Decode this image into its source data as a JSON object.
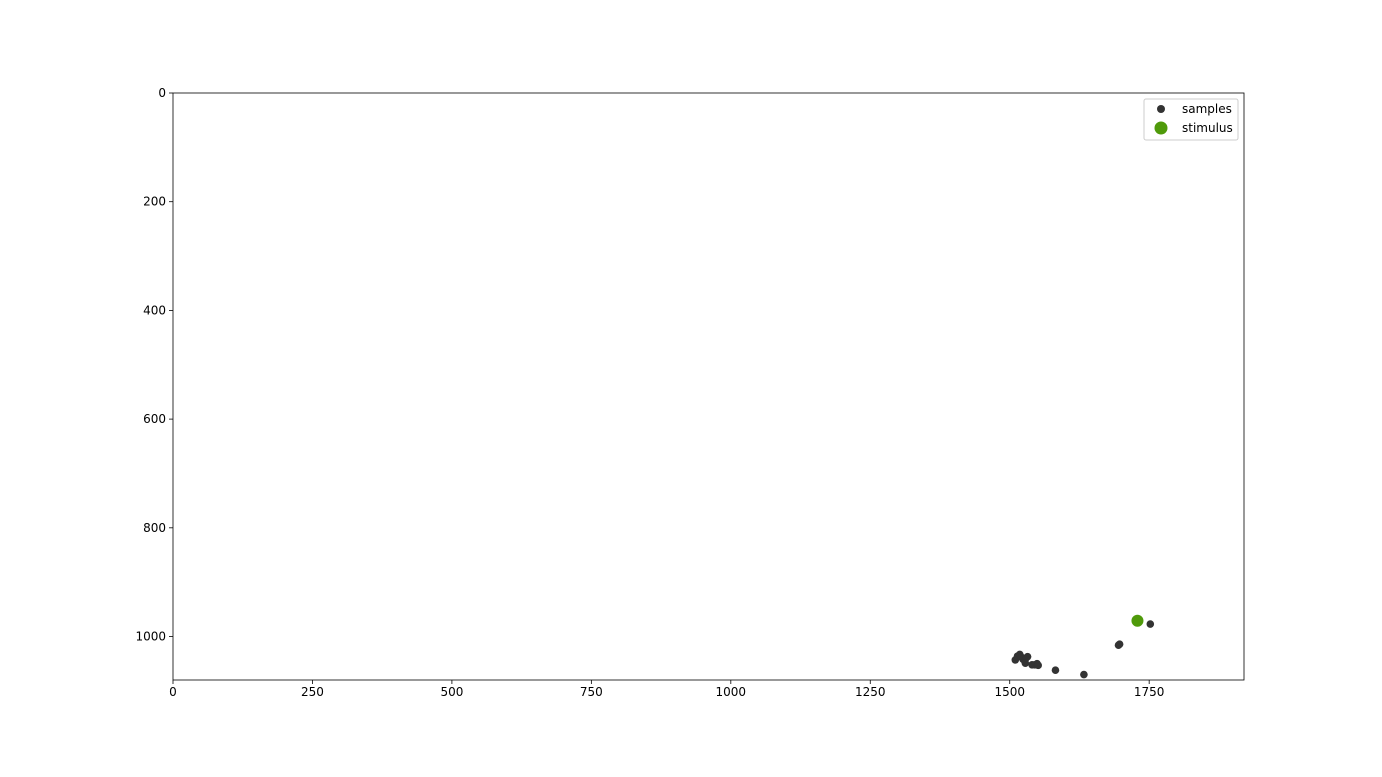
{
  "chart_data": {
    "type": "scatter",
    "title": "",
    "xlabel": "",
    "ylabel": "",
    "xlim": [
      0,
      1920
    ],
    "ylim": [
      1080,
      0
    ],
    "y_inverted": true,
    "grid": false,
    "legend_placement": "top-right",
    "x_ticks": [
      0,
      250,
      500,
      750,
      1000,
      1250,
      1500,
      1750
    ],
    "y_ticks": [
      0,
      200,
      400,
      600,
      800,
      1000
    ],
    "x_tick_labels": [
      "0",
      "250",
      "500",
      "750",
      "1000",
      "1250",
      "1500",
      "1750"
    ],
    "y_tick_labels": [
      "0",
      "200",
      "400",
      "600",
      "800",
      "1000"
    ],
    "series": [
      {
        "name": "samples",
        "color": "#333333",
        "marker": "small-circle",
        "points": [
          {
            "x": 1752,
            "y": 977
          },
          {
            "x": 1695,
            "y": 1016
          },
          {
            "x": 1697,
            "y": 1014
          },
          {
            "x": 1633,
            "y": 1070
          },
          {
            "x": 1582,
            "y": 1062
          },
          {
            "x": 1510,
            "y": 1043
          },
          {
            "x": 1514,
            "y": 1036
          },
          {
            "x": 1518,
            "y": 1033
          },
          {
            "x": 1521,
            "y": 1038
          },
          {
            "x": 1524,
            "y": 1042
          },
          {
            "x": 1527,
            "y": 1045
          },
          {
            "x": 1529,
            "y": 1040
          },
          {
            "x": 1532,
            "y": 1037
          },
          {
            "x": 1528,
            "y": 1049
          },
          {
            "x": 1540,
            "y": 1052
          },
          {
            "x": 1545,
            "y": 1052
          },
          {
            "x": 1549,
            "y": 1050
          },
          {
            "x": 1551,
            "y": 1053
          }
        ]
      },
      {
        "name": "stimulus",
        "color": "#4f9a0a",
        "marker": "large-circle",
        "points": [
          {
            "x": 1729,
            "y": 971
          }
        ]
      }
    ]
  }
}
